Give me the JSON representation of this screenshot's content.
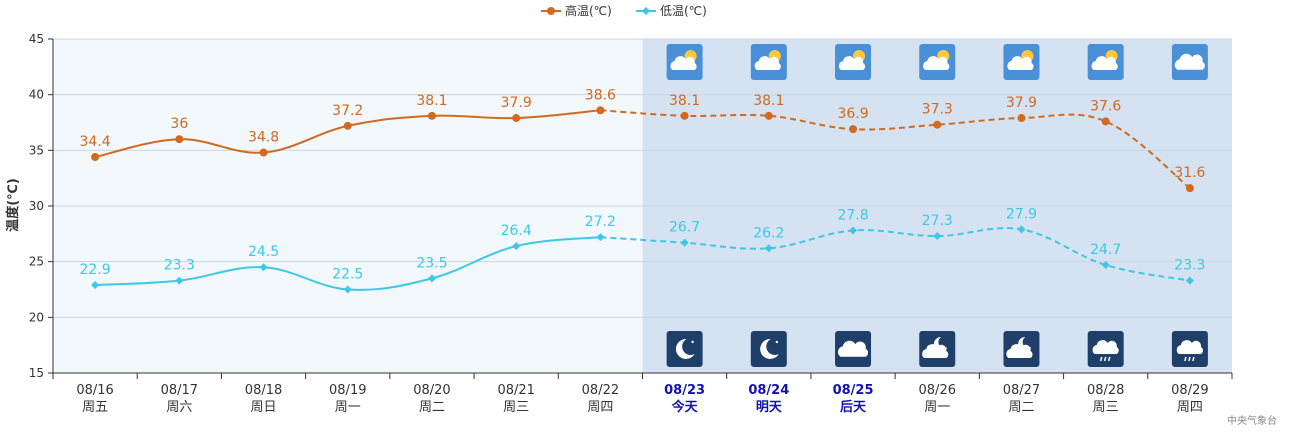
{
  "chart_data": {
    "type": "line",
    "ylabel": "温度(℃)",
    "ylim": [
      15,
      45
    ],
    "yticks": [
      15,
      20,
      25,
      30,
      35,
      40,
      45
    ],
    "grid": true,
    "legend_position": "top-center",
    "categories": [
      {
        "date": "08/16",
        "day": "周五"
      },
      {
        "date": "08/17",
        "day": "周六"
      },
      {
        "date": "08/18",
        "day": "周日"
      },
      {
        "date": "08/19",
        "day": "周一"
      },
      {
        "date": "08/20",
        "day": "周二"
      },
      {
        "date": "08/21",
        "day": "周三"
      },
      {
        "date": "08/22",
        "day": "周四"
      },
      {
        "date": "08/23",
        "day": "今天"
      },
      {
        "date": "08/24",
        "day": "明天"
      },
      {
        "date": "08/25",
        "day": "后天"
      },
      {
        "date": "08/26",
        "day": "周一"
      },
      {
        "date": "08/27",
        "day": "周二"
      },
      {
        "date": "08/28",
        "day": "周三"
      },
      {
        "date": "08/29",
        "day": "周四"
      }
    ],
    "highlighted_days": [
      7,
      8,
      9
    ],
    "forecast_start_index": 7,
    "series": [
      {
        "name": "高温(℃)",
        "color": "#d2691e",
        "marker": "circle",
        "values": [
          34.4,
          36,
          34.8,
          37.2,
          38.1,
          37.9,
          38.6,
          38.1,
          38.1,
          36.9,
          37.3,
          37.9,
          37.6,
          31.6
        ]
      },
      {
        "name": "低温(℃)",
        "color": "#3cc8e6",
        "marker": "diamond",
        "values": [
          22.9,
          23.3,
          24.5,
          22.5,
          23.5,
          26.4,
          27.2,
          26.7,
          26.2,
          27.8,
          27.3,
          27.9,
          24.7,
          23.3
        ]
      }
    ],
    "day_icons": [
      "partly-cloudy-day-icon",
      "partly-cloudy-day-icon",
      "partly-cloudy-day-icon",
      "partly-cloudy-day-icon",
      "partly-cloudy-day-icon",
      "partly-cloudy-day-icon",
      "cloudy-day-icon"
    ],
    "night_icons": [
      "clear-night-icon",
      "clear-night-icon",
      "cloudy-night-icon",
      "partly-cloudy-night-icon",
      "partly-cloudy-night-icon",
      "light-rain-night-icon",
      "light-rain-night-icon"
    ],
    "source": "中央气象台",
    "colors": {
      "past_bg": "#f3f8fd",
      "forecast_bg": "#d5e2f1",
      "grid": "#c9d6e3",
      "icon_day_bg": "#4a90d9",
      "icon_night_bg": "#1f3f6b",
      "highlight_text": "#1212b3"
    }
  }
}
